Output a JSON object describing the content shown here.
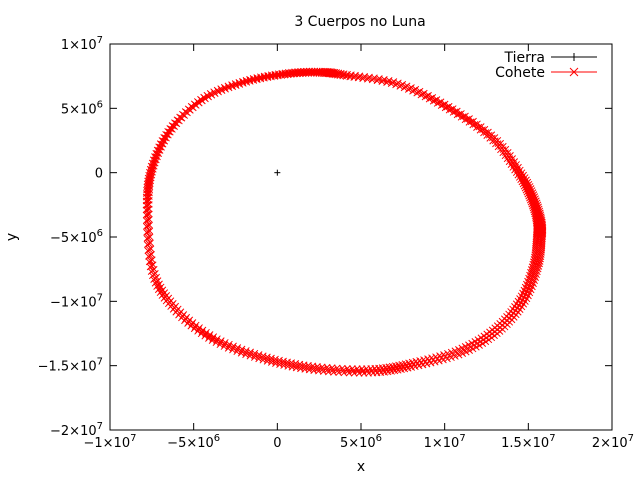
{
  "chart_data": {
    "type": "scatter",
    "title": "3 Cuerpos no Luna",
    "xlabel": "x",
    "ylabel": "y",
    "xlim": [
      -10000000,
      20000000
    ],
    "ylim": [
      -20000000,
      10000000
    ],
    "grid": false,
    "legend_position": "top-right",
    "x_ticks": [
      {
        "value": -10000000,
        "label": "−1×10",
        "exp": "7"
      },
      {
        "value": -5000000,
        "label": "−5×10",
        "exp": "6"
      },
      {
        "value": 0,
        "label": "0",
        "exp": ""
      },
      {
        "value": 5000000,
        "label": "5×10",
        "exp": "6"
      },
      {
        "value": 10000000,
        "label": "1×10",
        "exp": "7"
      },
      {
        "value": 15000000,
        "label": "1.5×10",
        "exp": "7"
      },
      {
        "value": 20000000,
        "label": "2×10",
        "exp": "7"
      }
    ],
    "y_ticks": [
      {
        "value": 10000000,
        "label": "1×10",
        "exp": "7"
      },
      {
        "value": 5000000,
        "label": "5×10",
        "exp": "6"
      },
      {
        "value": 0,
        "label": "0",
        "exp": ""
      },
      {
        "value": -5000000,
        "label": "−5×10",
        "exp": "6"
      },
      {
        "value": -10000000,
        "label": "−1×10",
        "exp": "7"
      },
      {
        "value": -15000000,
        "label": "−1.5×10",
        "exp": "7"
      },
      {
        "value": -20000000,
        "label": "−2×10",
        "exp": "7"
      }
    ],
    "series": [
      {
        "name": "Tierra",
        "color": "#000000",
        "marker": "plus",
        "points": [
          [
            0,
            0
          ]
        ]
      },
      {
        "name": "Cohete",
        "color": "#ff0000",
        "marker": "cross",
        "orbit": {
          "x": [
            3800000,
            7000000,
            10000000,
            12700000,
            14300000,
            15100000,
            15500000,
            15500000,
            15300000,
            14500000,
            13000000,
            10800000,
            8000000,
            5500000,
            2000000,
            -1000000,
            -4000000,
            -6300000,
            -7600000,
            -7900000,
            -7600000,
            -6500000,
            -4500000,
            -2000000,
            500000,
            2500000
          ],
          "y": [
            7600000,
            6900000,
            5100000,
            2700000,
            0,
            -2000000,
            -3800000,
            -5200000,
            -7200000,
            -9900000,
            -12200000,
            -13900000,
            -14900000,
            -15400000,
            -15200000,
            -14400000,
            -12900000,
            -10500000,
            -7600000,
            -2500000,
            500000,
            3400000,
            5800000,
            7100000,
            7700000,
            7800000
          ]
        }
      }
    ]
  }
}
